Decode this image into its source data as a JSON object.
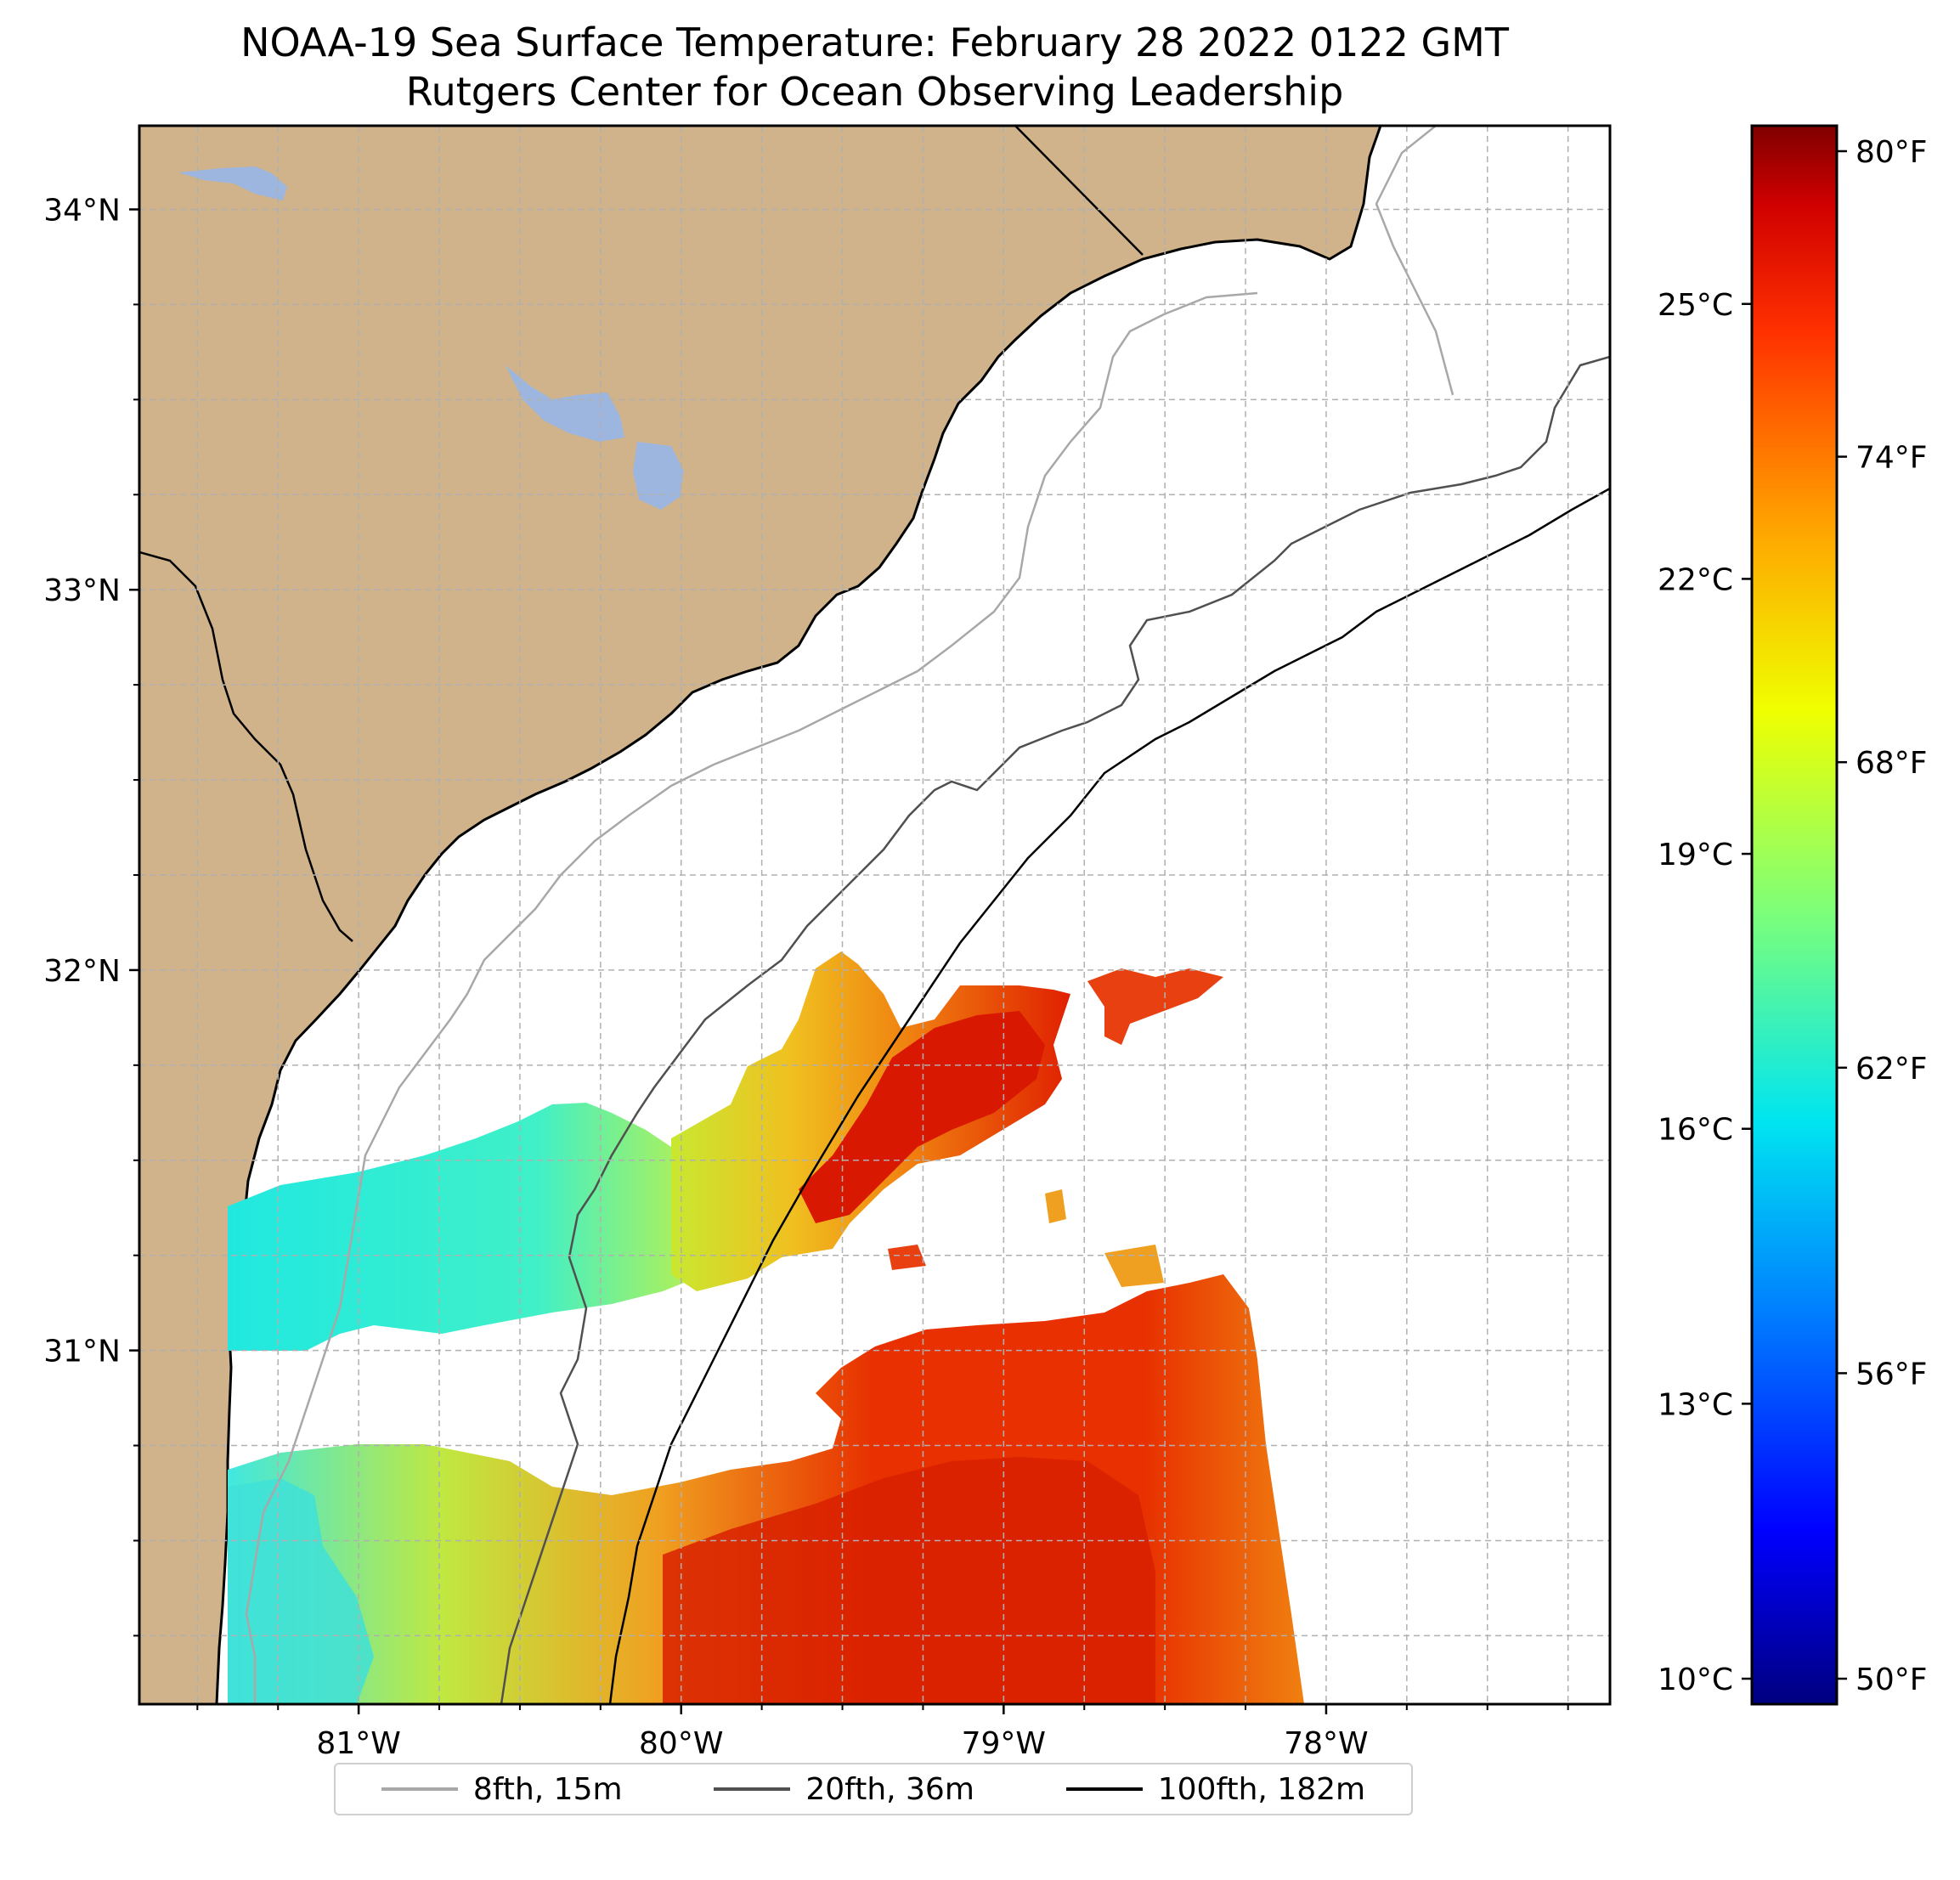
{
  "title": {
    "line1": "NOAA-19 Sea Surface Temperature: February 28 2022 0122 GMT",
    "line2": "Rutgers Center for Ocean Observing Leadership"
  },
  "map": {
    "extent": {
      "lon_min": -81.68,
      "lon_max": -77.12,
      "lat_min": 30.07,
      "lat_max": 34.22
    },
    "lat_ticks": [
      {
        "value": 34,
        "label": "34°N"
      },
      {
        "value": 33,
        "label": "33°N"
      },
      {
        "value": 32,
        "label": "32°N"
      },
      {
        "value": 31,
        "label": "31°N"
      }
    ],
    "lon_ticks": [
      {
        "value": -81,
        "label": "81°W"
      },
      {
        "value": -80,
        "label": "80°W"
      },
      {
        "value": -79,
        "label": "79°W"
      },
      {
        "value": -78,
        "label": "78°W"
      }
    ],
    "colors": {
      "land": "#d0b38a",
      "lake": "#9cb6e0",
      "ocean": "#ffffff",
      "grid": "#b0b0b0"
    }
  },
  "colorbar": {
    "celsius_ticks": [
      {
        "value": 25,
        "label": "25°C"
      },
      {
        "value": 22,
        "label": "22°C"
      },
      {
        "value": 19,
        "label": "19°C"
      },
      {
        "value": 16,
        "label": "16°C"
      },
      {
        "value": 13,
        "label": "13°C"
      },
      {
        "value": 10,
        "label": "10°C"
      }
    ],
    "fahrenheit_ticks": [
      {
        "value": 80,
        "label": "80°F"
      },
      {
        "value": 74,
        "label": "74°F"
      },
      {
        "value": 68,
        "label": "68°F"
      },
      {
        "value": 62,
        "label": "62°F"
      },
      {
        "value": 56,
        "label": "56°F"
      },
      {
        "value": 50,
        "label": "50°F"
      }
    ],
    "range_f": [
      49.5,
      80.5
    ],
    "colormap": [
      "#000080",
      "#0000ff",
      "#0080ff",
      "#00e5f0",
      "#7bff7b",
      "#f0ff00",
      "#ffa000",
      "#ff3000",
      "#c00000",
      "#800000"
    ]
  },
  "legend": {
    "items": [
      {
        "label": "8fth, 15m",
        "color": "#a8a8a8"
      },
      {
        "label": "20fth, 36m",
        "color": "#505050"
      },
      {
        "label": "100fth, 182m",
        "color": "#000000"
      }
    ]
  }
}
